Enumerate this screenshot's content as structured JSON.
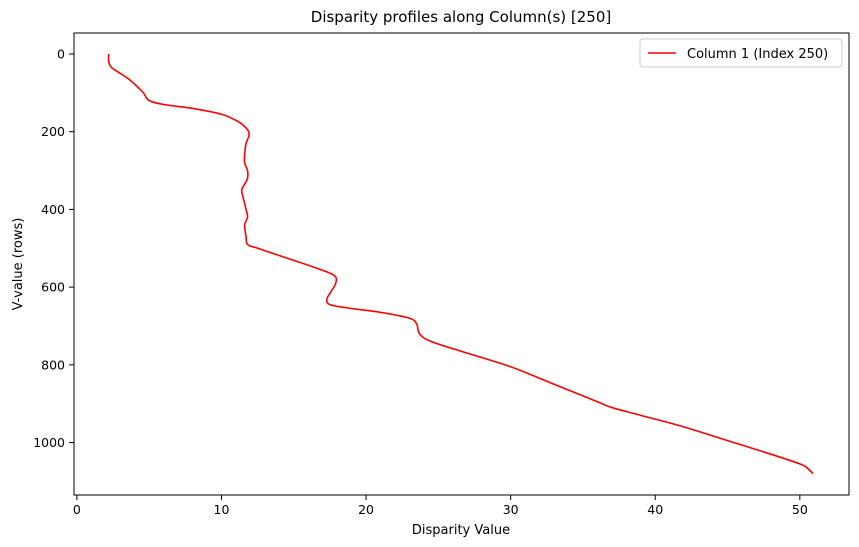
{
  "chart_data": {
    "type": "line",
    "title": "Disparity profiles along Column(s) [250]",
    "xlabel": "Disparity Value",
    "ylabel": "V-value (rows)",
    "xlim": [
      -0.2,
      53.4
    ],
    "ylim": [
      1135,
      -54
    ],
    "y_inverted": true,
    "grid": false,
    "legend_position": "top-right",
    "x_ticks": [
      0,
      10,
      20,
      30,
      40,
      50
    ],
    "y_ticks": [
      0,
      200,
      400,
      600,
      800,
      1000
    ],
    "series": [
      {
        "name": "Column 1 (Index 250)",
        "color": "#ff0000",
        "x": [
          2.2,
          2.2,
          2.4,
          3.0,
          3.6,
          4.2,
          4.6,
          5.0,
          6.0,
          8.0,
          10.0,
          11.2,
          11.8,
          11.9,
          11.7,
          11.6,
          11.6,
          11.8,
          11.8,
          11.6,
          11.4,
          11.5,
          11.7,
          11.8,
          11.6,
          11.7,
          11.8,
          12.5,
          14.5,
          16.5,
          17.8,
          17.9,
          17.6,
          17.3,
          17.5,
          19.0,
          21.0,
          23.0,
          23.5,
          23.7,
          24.5,
          27.0,
          30.0,
          33.0,
          36.0,
          37.0,
          39.0,
          42.0,
          45.0,
          48.0,
          50.0,
          50.5,
          50.9
        ],
        "y": [
          0,
          20,
          35,
          50,
          65,
          85,
          100,
          120,
          130,
          140,
          155,
          175,
          195,
          210,
          230,
          260,
          280,
          300,
          320,
          335,
          350,
          370,
          400,
          420,
          440,
          470,
          490,
          500,
          525,
          550,
          570,
          590,
          610,
          630,
          645,
          655,
          665,
          680,
          695,
          720,
          740,
          770,
          805,
          850,
          895,
          910,
          930,
          960,
          995,
          1030,
          1055,
          1065,
          1080
        ]
      }
    ]
  }
}
